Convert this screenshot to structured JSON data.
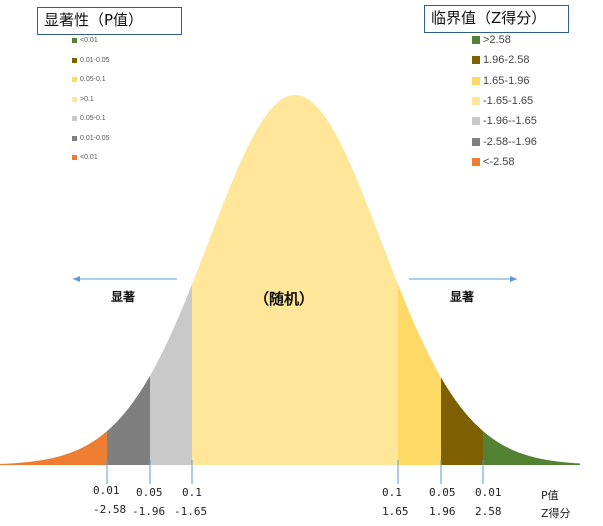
{
  "p_legend": {
    "title": "显著性（P值）",
    "items": [
      {
        "label": "<0.01",
        "color": "#548235"
      },
      {
        "label": "0.01-0.05",
        "color": "#7F6000"
      },
      {
        "label": "0.05-0.1",
        "color": "#FFD966"
      },
      {
        "label": ">0.1",
        "color": "#FFE699"
      },
      {
        "label": "0.05-0.1",
        "color": "#C9C9C9"
      },
      {
        "label": "0.01-0.05",
        "color": "#7F7F7F"
      },
      {
        "label": "<0.01",
        "color": "#ED7D31"
      }
    ]
  },
  "z_legend": {
    "title": "临界值（Z得分）",
    "items": [
      {
        "label": ">2.58",
        "color": "#548235"
      },
      {
        "label": "1.96-2.58",
        "color": "#7F6000"
      },
      {
        "label": "1.65-1.96",
        "color": "#FFD966"
      },
      {
        "label": "-1.65-1.65",
        "color": "#FFE699"
      },
      {
        "label": "-1.96--1.65",
        "color": "#C9C9C9"
      },
      {
        "label": "-2.58--1.96",
        "color": "#7F7F7F"
      },
      {
        "label": "<-2.58",
        "color": "#ED7D31"
      }
    ]
  },
  "regions": [
    {
      "z_from": -4,
      "z_to": -2.58,
      "color": "#ED7D31"
    },
    {
      "z_from": -2.58,
      "z_to": -1.96,
      "color": "#7F7F7F"
    },
    {
      "z_from": -1.96,
      "z_to": -1.65,
      "color": "#C9C9C9"
    },
    {
      "z_from": -1.65,
      "z_to": 1.65,
      "color": "#FFE699"
    },
    {
      "z_from": 1.65,
      "z_to": 1.96,
      "color": "#FFD966"
    },
    {
      "z_from": 1.96,
      "z_to": 2.58,
      "color": "#7F6000"
    },
    {
      "z_from": 2.58,
      "z_to": 4,
      "color": "#548235"
    }
  ],
  "ticks": [
    {
      "p": "0.01",
      "z": "-2.58"
    },
    {
      "p": "0.05",
      "z": "-1.96"
    },
    {
      "p": "0.1",
      "z": "-1.65"
    },
    {
      "p": "0.1",
      "z": "1.65"
    },
    {
      "p": "0.05",
      "z": "1.96"
    },
    {
      "p": "0.01",
      "z": "2.58"
    }
  ],
  "axis_labels": {
    "p": "P值",
    "z": "Z得分"
  },
  "labels": {
    "left_significant": "显著",
    "right_significant": "显著",
    "center": "（随机）"
  },
  "arrow_color": "#5B9BD5"
}
